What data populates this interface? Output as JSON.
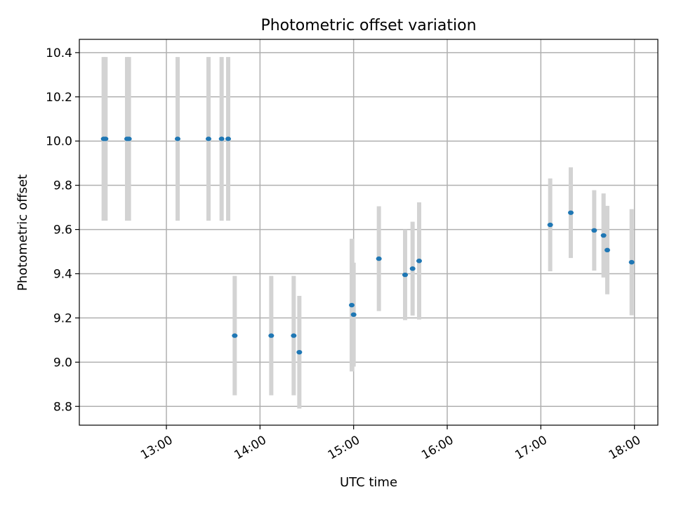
{
  "chart_data": {
    "type": "scatter",
    "title": "Photometric offset variation",
    "xlabel": "UTC time",
    "ylabel": "Photometric offset",
    "x_unit": "UTC hour",
    "xlim": [
      12.07,
      18.25
    ],
    "ylim": [
      8.715,
      10.46
    ],
    "x_ticks": [
      {
        "value": 13,
        "label": "13:00"
      },
      {
        "value": 14,
        "label": "14:00"
      },
      {
        "value": 15,
        "label": "15:00"
      },
      {
        "value": 16,
        "label": "16:00"
      },
      {
        "value": 17,
        "label": "17:00"
      },
      {
        "value": 18,
        "label": "18:00"
      }
    ],
    "y_ticks": [
      {
        "value": 8.8,
        "label": "8.8"
      },
      {
        "value": 9.0,
        "label": "9.0"
      },
      {
        "value": 9.2,
        "label": "9.2"
      },
      {
        "value": 9.4,
        "label": "9.4"
      },
      {
        "value": 9.6,
        "label": "9.6"
      },
      {
        "value": 9.8,
        "label": "9.8"
      },
      {
        "value": 10.0,
        "label": "10.0"
      },
      {
        "value": 10.2,
        "label": "10.2"
      },
      {
        "value": 10.4,
        "label": "10.4"
      }
    ],
    "grid": true,
    "colors": {
      "point": "#1f77b4",
      "errorbar": "#d3d3d3"
    },
    "points": [
      {
        "x": 12.33,
        "y": 10.01,
        "yerr": 0.37
      },
      {
        "x": 12.35,
        "y": 10.01,
        "yerr": 0.37
      },
      {
        "x": 12.58,
        "y": 10.01,
        "yerr": 0.37
      },
      {
        "x": 12.6,
        "y": 10.01,
        "yerr": 0.37
      },
      {
        "x": 13.12,
        "y": 10.01,
        "yerr": 0.37
      },
      {
        "x": 13.45,
        "y": 10.01,
        "yerr": 0.37
      },
      {
        "x": 13.59,
        "y": 10.01,
        "yerr": 0.37
      },
      {
        "x": 13.66,
        "y": 10.01,
        "yerr": 0.37
      },
      {
        "x": 13.73,
        "y": 9.12,
        "yerr": 0.27
      },
      {
        "x": 14.12,
        "y": 9.12,
        "yerr": 0.27
      },
      {
        "x": 14.36,
        "y": 9.12,
        "yerr": 0.27
      },
      {
        "x": 14.42,
        "y": 9.045,
        "yerr": 0.255
      },
      {
        "x": 14.98,
        "y": 9.258,
        "yerr": 0.3
      },
      {
        "x": 15.0,
        "y": 9.215,
        "yerr": 0.235
      },
      {
        "x": 15.27,
        "y": 9.468,
        "yerr": 0.237
      },
      {
        "x": 15.55,
        "y": 9.395,
        "yerr": 0.205
      },
      {
        "x": 15.63,
        "y": 9.423,
        "yerr": 0.212
      },
      {
        "x": 15.7,
        "y": 9.458,
        "yerr": 0.265
      },
      {
        "x": 17.1,
        "y": 9.621,
        "yerr": 0.21
      },
      {
        "x": 17.32,
        "y": 9.676,
        "yerr": 0.205
      },
      {
        "x": 17.57,
        "y": 9.596,
        "yerr": 0.182
      },
      {
        "x": 17.67,
        "y": 9.573,
        "yerr": 0.19
      },
      {
        "x": 17.71,
        "y": 9.507,
        "yerr": 0.2
      },
      {
        "x": 17.97,
        "y": 9.452,
        "yerr": 0.24
      }
    ]
  }
}
